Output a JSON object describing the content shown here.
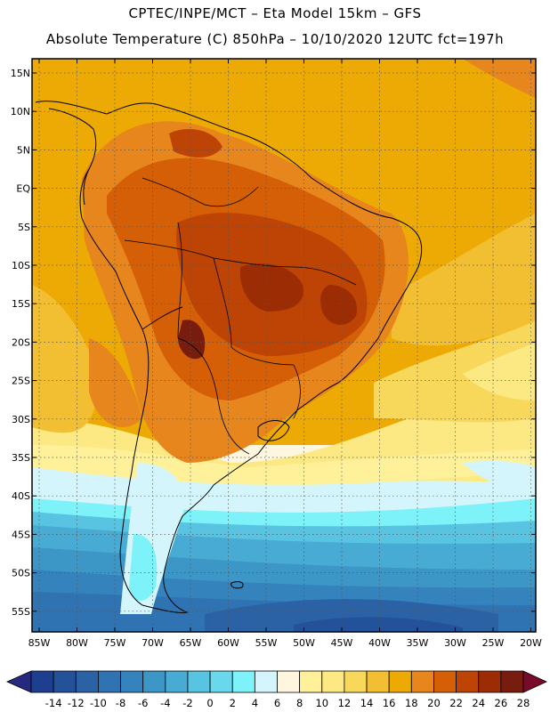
{
  "header": {
    "line1": "CPTEC/INPE/MCT –   Eta Model 15km – GFS",
    "line2": "Absolute Temperature (C) 850hPa – 10/10/2020 12UTC fct=197h"
  },
  "axes": {
    "lat_labels": [
      "15N",
      "10N",
      "5N",
      "EQ",
      "5S",
      "10S",
      "15S",
      "20S",
      "25S",
      "30S",
      "35S",
      "40S",
      "45S",
      "50S",
      "55S"
    ],
    "lon_labels": [
      "85W",
      "80W",
      "75W",
      "70W",
      "65W",
      "60W",
      "55W",
      "50W",
      "45W",
      "40W",
      "35W",
      "30W",
      "25W",
      "20W"
    ]
  },
  "colorbar": {
    "labels": [
      "-14",
      "-12",
      "-10",
      "-8",
      "-6",
      "-4",
      "-2",
      "0",
      "2",
      "4",
      "6",
      "8",
      "10",
      "12",
      "14",
      "16",
      "18",
      "20",
      "22",
      "24",
      "26",
      "28"
    ],
    "colors": [
      "#1e3f8f",
      "#24529a",
      "#2b62a6",
      "#2f73b3",
      "#3483bc",
      "#3c96c6",
      "#47abd3",
      "#58c4e2",
      "#6ad8ec",
      "#7df2f8",
      "#d5f5fd",
      "#fff6df",
      "#fff19a",
      "#fde983",
      "#f8d85a",
      "#f2bf33",
      "#edaa05",
      "#e6861d",
      "#d45f06",
      "#bd4405",
      "#9b2c04",
      "#771c0f"
    ],
    "left_arrow_color": "#252a80",
    "right_arrow_color": "#7a0a2a"
  }
}
